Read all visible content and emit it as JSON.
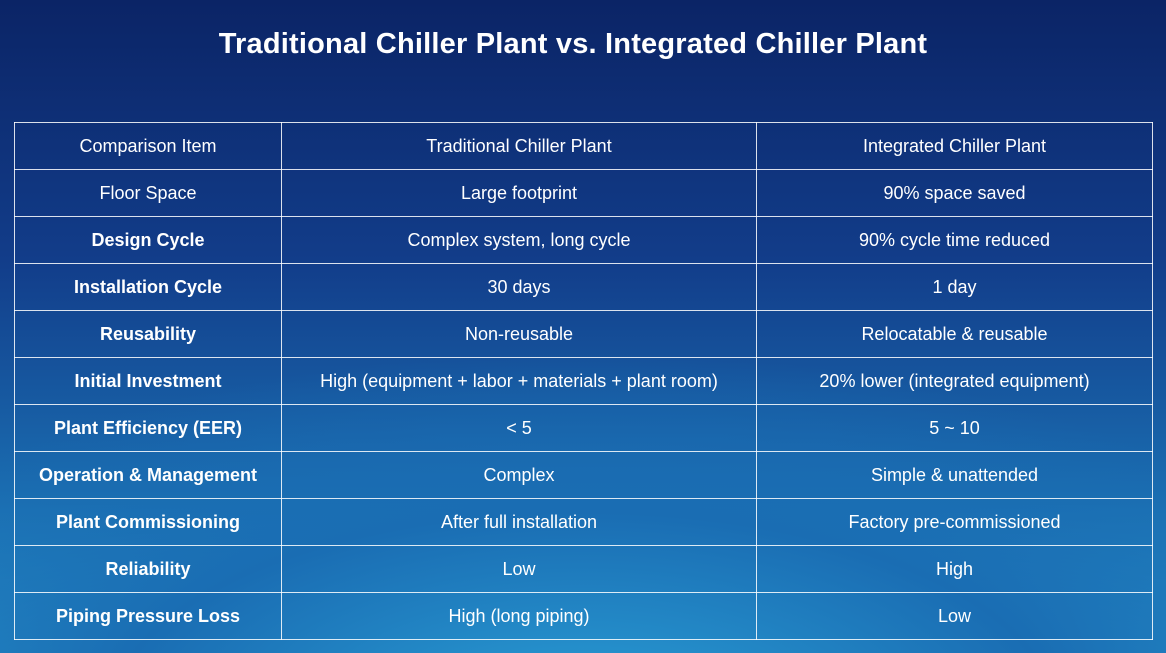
{
  "header": {
    "title": "Traditional Chiller Plant vs. Integrated Chiller Plant"
  },
  "table": {
    "columns": [
      "Comparison Item",
      "Traditional Chiller Plant",
      "Integrated Chiller Plant"
    ],
    "rows": [
      [
        "Floor Space",
        "Large footprint",
        "90% space saved"
      ],
      [
        "Design Cycle",
        "Complex system, long cycle",
        "90% cycle time reduced"
      ],
      [
        "Installation Cycle",
        "30 days",
        "1 day"
      ],
      [
        "Reusability",
        "Non-reusable",
        "Relocatable & reusable"
      ],
      [
        "Initial Investment",
        "High (equipment + labor + materials + plant room)",
        "20% lower (integrated equipment)"
      ],
      [
        "Plant Efficiency (EER)",
        "< 5",
        "5 ~ 10"
      ],
      [
        "Operation & Management",
        "Complex",
        "Simple & unattended"
      ],
      [
        "Plant Commissioning",
        "After full installation",
        "Factory pre-commissioned"
      ],
      [
        "Reliability",
        "Low",
        "High"
      ],
      [
        "Piping Pressure Loss",
        "High (long piping)",
        "Low"
      ]
    ]
  }
}
